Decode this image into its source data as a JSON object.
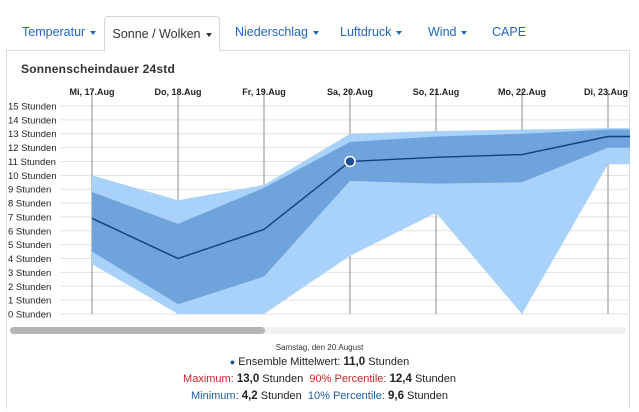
{
  "tabs": [
    {
      "label": "Temperatur",
      "dropdown": true,
      "active": false
    },
    {
      "label": "Sonne / Wolken",
      "dropdown": true,
      "active": true
    },
    {
      "label": "Niederschlag",
      "dropdown": true,
      "active": false
    },
    {
      "label": "Luftdruck",
      "dropdown": true,
      "active": false
    },
    {
      "label": "Wind",
      "dropdown": true,
      "active": false
    },
    {
      "label": "CAPE",
      "dropdown": false,
      "active": false
    }
  ],
  "chart_data": {
    "type": "area",
    "title": "Sonnenscheindauer 24std",
    "categories": [
      "Mi, 17.Aug",
      "Do, 18.Aug",
      "Fr, 19.Aug",
      "Sa, 20.Aug",
      "So, 21.Aug",
      "Mo, 22.Aug",
      "Di, 23.Aug"
    ],
    "y_tick_labels": [
      "0 Stunden",
      "1 Stunden",
      "2 Stunden",
      "3 Stunden",
      "4 Stunden",
      "5 Stunden",
      "6 Stunden",
      "7 Stunden",
      "8 Stunden",
      "9 Stunden",
      "10 Stunden",
      "11 Stunden",
      "12 Stunden",
      "13 Stunden",
      "14 Stunden",
      "15 Stunden"
    ],
    "ylim": [
      0,
      15
    ],
    "grid": true,
    "series": [
      {
        "name": "Ensemble Mittelwert",
        "role": "mean",
        "values": [
          6.9,
          4.0,
          6.1,
          11.0,
          11.3,
          11.5,
          12.8
        ]
      },
      {
        "name": "Minimum",
        "role": "min",
        "values": [
          3.6,
          0.0,
          0.0,
          4.2,
          7.3,
          0.0,
          10.8
        ]
      },
      {
        "name": "Maximum",
        "role": "max",
        "values": [
          10.0,
          8.2,
          9.3,
          13.0,
          13.2,
          13.3,
          13.4
        ]
      },
      {
        "name": "10% Percentile",
        "role": "p10",
        "values": [
          4.5,
          0.7,
          2.7,
          9.6,
          9.4,
          9.5,
          12.0
        ]
      },
      {
        "name": "90% Percentile",
        "role": "p90",
        "values": [
          8.8,
          6.5,
          9.1,
          12.4,
          12.8,
          13.0,
          13.3
        ]
      }
    ],
    "highlight_index": 3,
    "colors": {
      "outer_band": "#a9d2fa",
      "inner_band": "#6fa3dc",
      "mean_line": "#123f7f",
      "grid": "#e2e2e2",
      "day_line": "#8c8c8c"
    }
  },
  "tooltip": {
    "date": "Samstag, den 20.August",
    "mean_label": "Ensemble Mittelwert:",
    "mean_value": "11,0",
    "max_label": "Maximum:",
    "max_value": "13,0",
    "p90_label": "90% Percentile:",
    "p90_value": "12,4",
    "min_label": "Minimum:",
    "min_value": "4,2",
    "p10_label": "10% Percentile:",
    "p10_value": "9,6",
    "unit": "Stunden"
  }
}
